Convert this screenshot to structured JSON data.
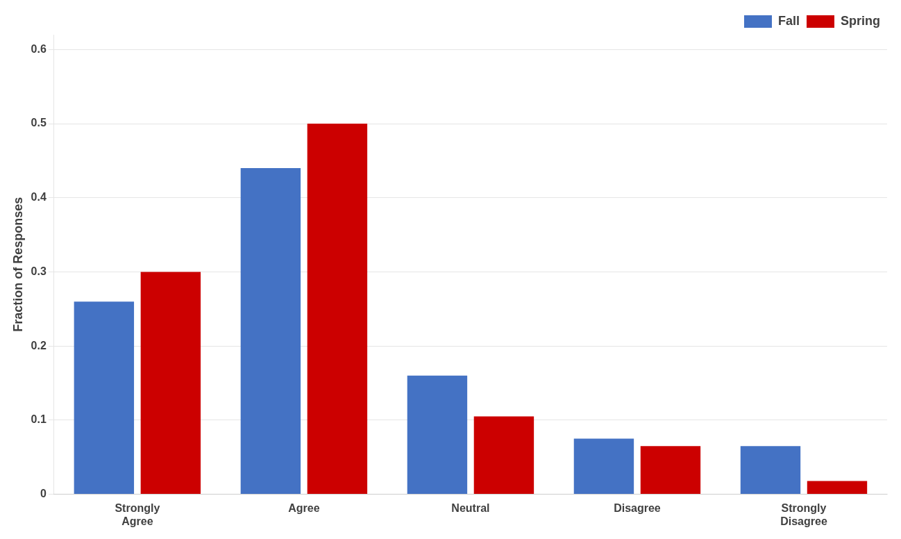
{
  "chart_data": {
    "type": "bar",
    "categories": [
      "Strongly\nAgree",
      "Agree",
      "Neutral",
      "Disagree",
      "Strongly\nDisagree"
    ],
    "series": [
      {
        "name": "Fall",
        "color": "#4472C4",
        "values": [
          0.26,
          0.44,
          0.16,
          0.075,
          0.065
        ]
      },
      {
        "name": "Spring",
        "color": "#CC0000",
        "values": [
          0.3,
          0.5,
          0.105,
          0.065,
          0.018
        ]
      }
    ],
    "ylabel": "Fraction of Responses",
    "ylim": [
      0,
      0.62
    ],
    "yticks": [
      0,
      0.1,
      0.2,
      0.3,
      0.4,
      0.5,
      0.6
    ],
    "grid": true,
    "legend": "upper right"
  }
}
